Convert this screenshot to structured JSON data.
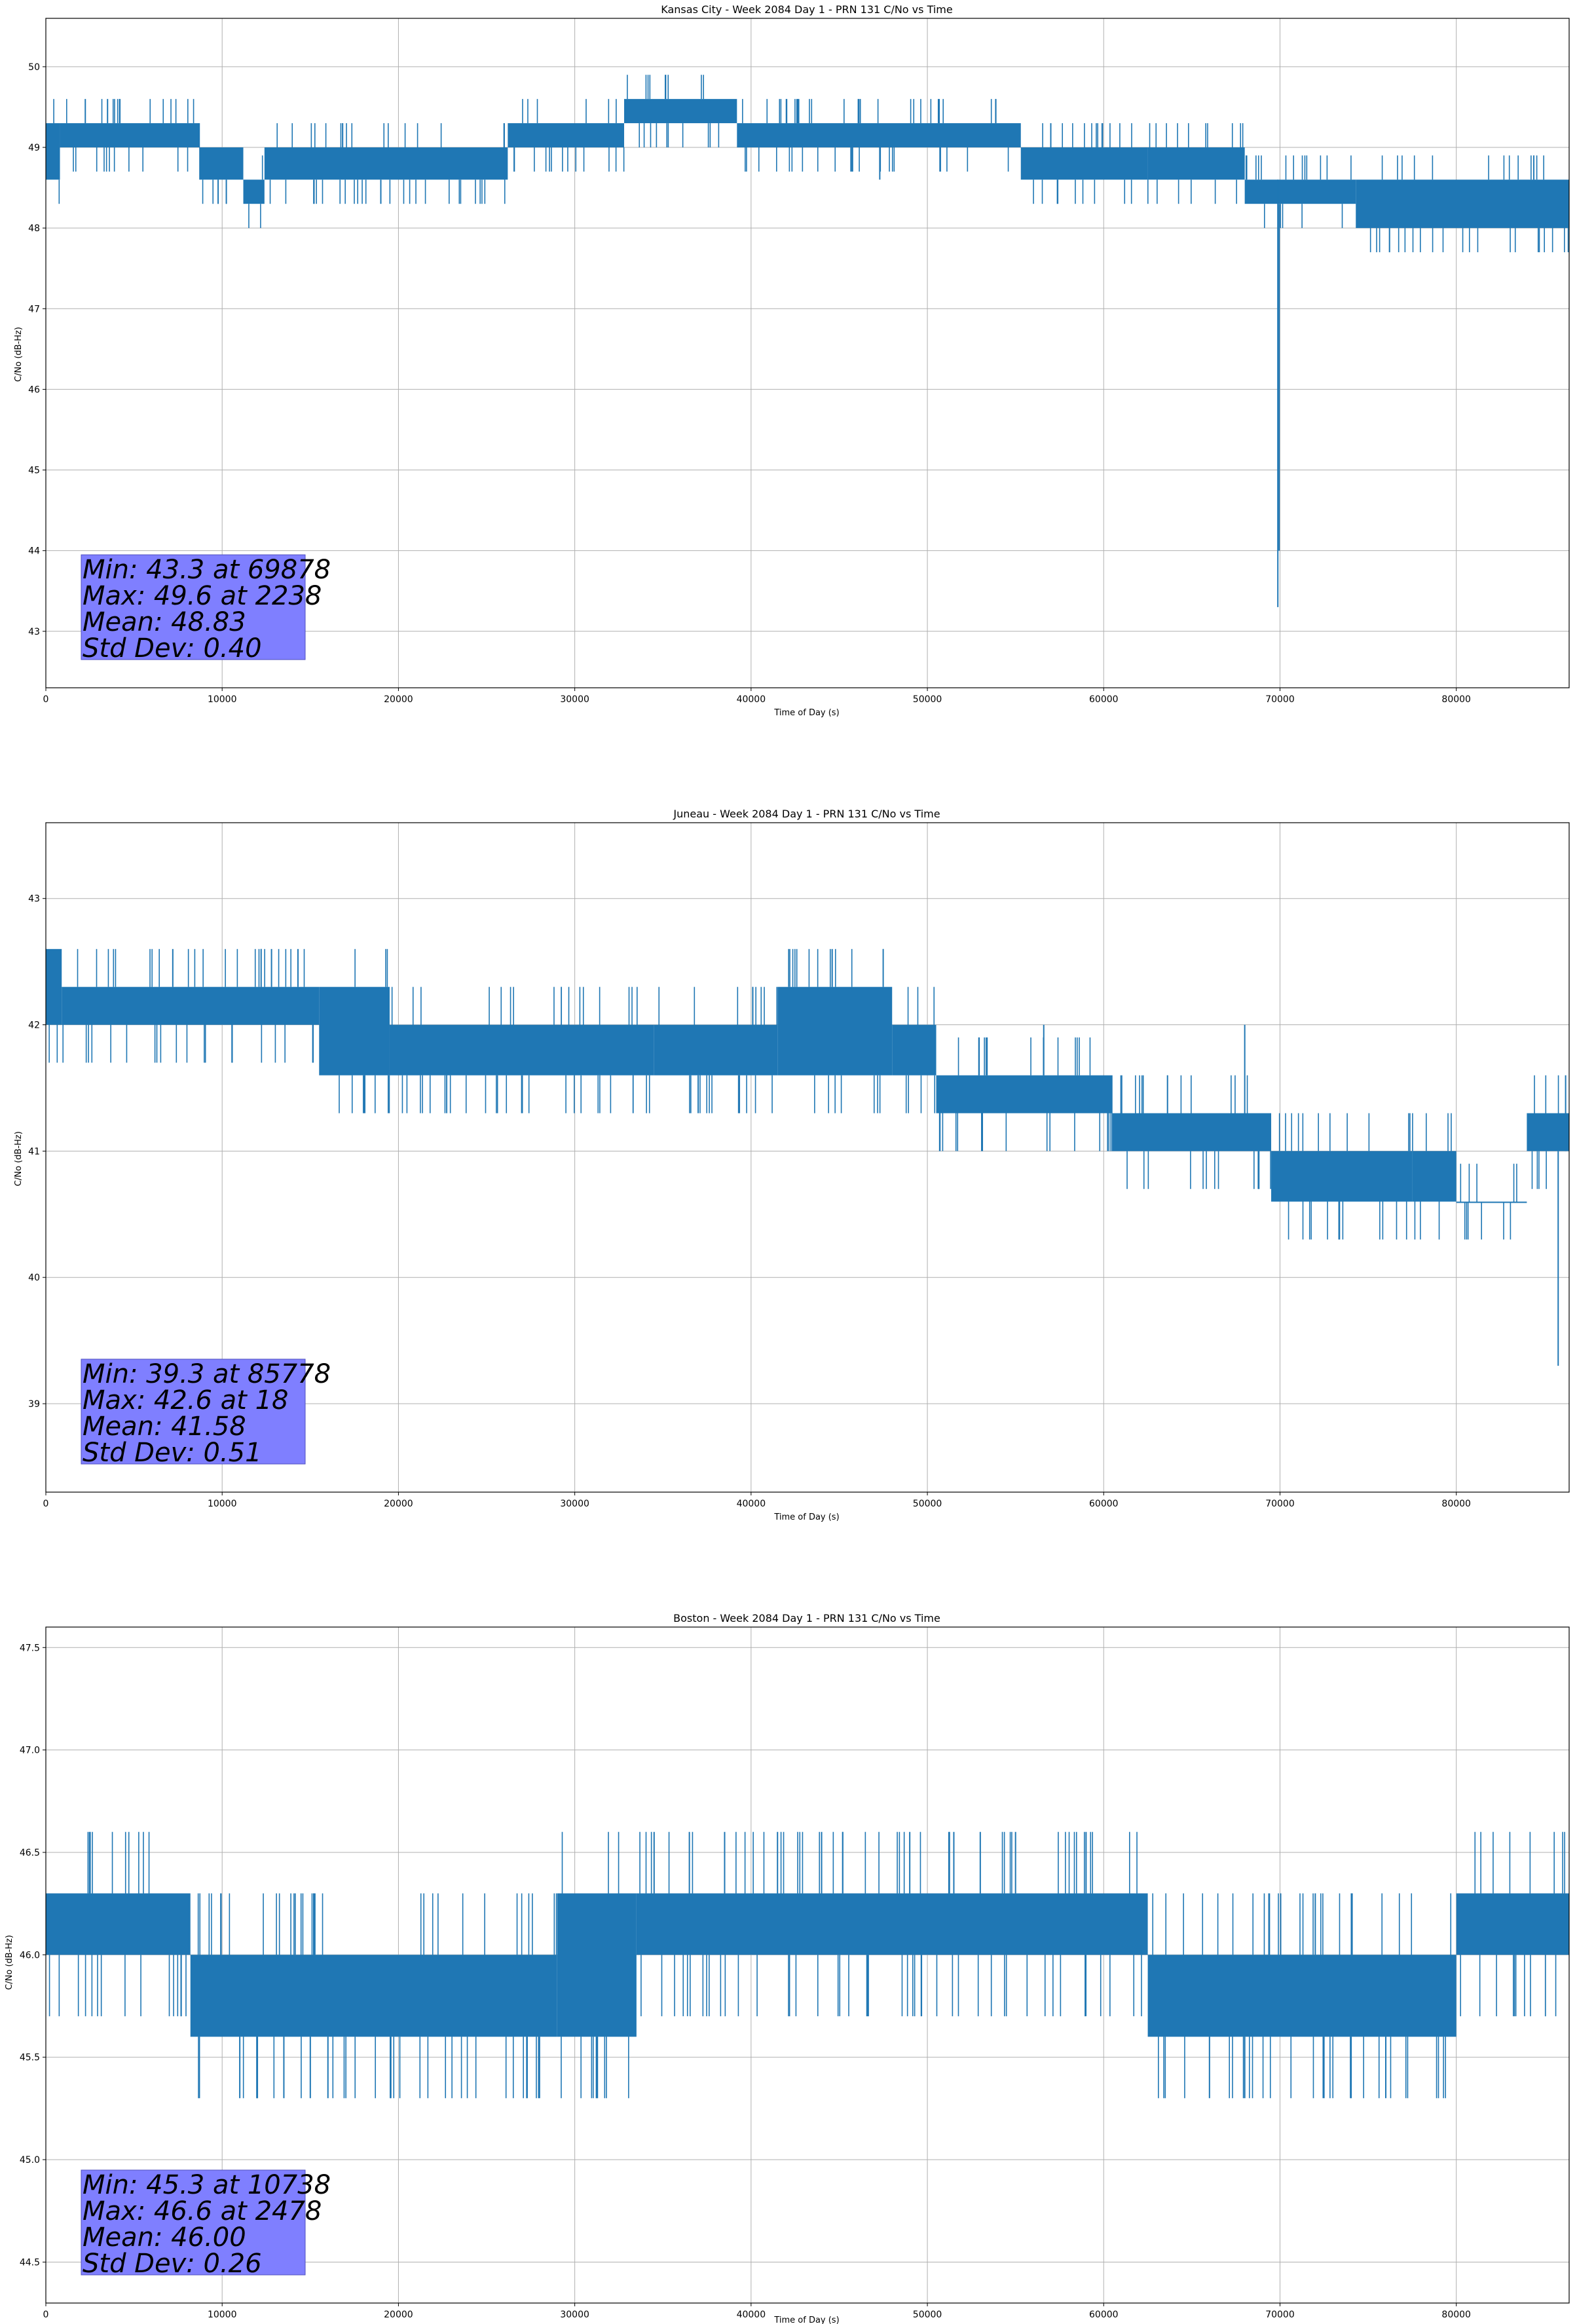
{
  "colors": {
    "series": "#1f77b4",
    "grid": "#b0b0b0",
    "stats_box_fill": "#7f7fff",
    "axes": "#000000"
  },
  "chart_data": [
    {
      "type": "line",
      "title": "Kansas City - Week 2084 Day 1 - PRN 131 C/No vs Time",
      "xlabel": "Time of Day (s)",
      "ylabel": "C/No (dB-Hz)",
      "xlim": [
        0,
        86400
      ],
      "ylim": [
        42.3,
        50.6
      ],
      "xticks": [
        0,
        10000,
        20000,
        30000,
        40000,
        50000,
        60000,
        70000,
        80000
      ],
      "yticks": [
        43,
        44,
        45,
        46,
        47,
        48,
        49,
        50
      ],
      "yticklabels": [
        "43",
        "44",
        "45",
        "46",
        "47",
        "48",
        "49",
        "50"
      ],
      "grid": true,
      "legend": "none",
      "stats": [
        "Min: 43.3 at 69878",
        "Max: 49.6 at 2238",
        "Mean: 48.83",
        "Std Dev: 0.40"
      ],
      "series_bands": [
        {
          "x": [
            0,
            800
          ],
          "lo": 48.6,
          "hi": 49.3
        },
        {
          "x": [
            800,
            8700
          ],
          "lo": 49.0,
          "hi": 49.3
        },
        {
          "x": [
            8700,
            11200
          ],
          "lo": 48.6,
          "hi": 49.0
        },
        {
          "x": [
            11200,
            12400
          ],
          "lo": 48.3,
          "hi": 48.6
        },
        {
          "x": [
            12400,
            26200
          ],
          "lo": 48.6,
          "hi": 49.0
        },
        {
          "x": [
            26200,
            32800
          ],
          "lo": 49.0,
          "hi": 49.3
        },
        {
          "x": [
            32800,
            39200
          ],
          "lo": 49.3,
          "hi": 49.6
        },
        {
          "x": [
            39200,
            55300
          ],
          "lo": 49.0,
          "hi": 49.3
        },
        {
          "x": [
            55300,
            62500
          ],
          "lo": 48.6,
          "hi": 49.0
        },
        {
          "x": [
            62500,
            68000
          ],
          "lo": 48.6,
          "hi": 49.0
        },
        {
          "x": [
            68000,
            74300
          ],
          "lo": 48.3,
          "hi": 48.6
        },
        {
          "x": [
            74300,
            86400
          ],
          "lo": 48.0,
          "hi": 48.6
        }
      ],
      "spikes": [
        {
          "x": 2238,
          "lo": 49.3,
          "hi": 49.6
        },
        {
          "x": 3500,
          "lo": 49.3,
          "hi": 49.6
        },
        {
          "x": 4200,
          "lo": 49.3,
          "hi": 49.6
        },
        {
          "x": 19000,
          "lo": 48.3,
          "hi": 48.6
        },
        {
          "x": 26000,
          "lo": 48.6,
          "hi": 49.3
        },
        {
          "x": 42600,
          "lo": 49.3,
          "hi": 49.6
        },
        {
          "x": 47300,
          "lo": 48.6,
          "hi": 49.0
        },
        {
          "x": 57000,
          "lo": 49.0,
          "hi": 49.3
        },
        {
          "x": 69878,
          "lo": 43.3,
          "hi": 48.6
        },
        {
          "x": 69950,
          "lo": 44.0,
          "hi": 48.3
        }
      ]
    },
    {
      "type": "line",
      "title": "Juneau - Week 2084 Day 1 - PRN 131 C/No vs Time",
      "xlabel": "Time of Day (s)",
      "ylabel": "C/No (dB-Hz)",
      "xlim": [
        0,
        86400
      ],
      "ylim": [
        38.3,
        43.6
      ],
      "xticks": [
        0,
        10000,
        20000,
        30000,
        40000,
        50000,
        60000,
        70000,
        80000
      ],
      "yticks": [
        39,
        40,
        41,
        42,
        43
      ],
      "yticklabels": [
        "39",
        "40",
        "41",
        "42",
        "43"
      ],
      "grid": true,
      "legend": "none",
      "stats": [
        "Min: 39.3 at 85778",
        "Max: 42.6 at 18",
        "Mean: 41.58",
        "Std Dev: 0.51"
      ],
      "series_bands": [
        {
          "x": [
            0,
            900
          ],
          "lo": 42.0,
          "hi": 42.6
        },
        {
          "x": [
            900,
            15500
          ],
          "lo": 42.0,
          "hi": 42.3
        },
        {
          "x": [
            15500,
            19500
          ],
          "lo": 41.6,
          "hi": 42.3
        },
        {
          "x": [
            19500,
            34500
          ],
          "lo": 41.6,
          "hi": 42.0
        },
        {
          "x": [
            34500,
            41500
          ],
          "lo": 41.6,
          "hi": 42.0
        },
        {
          "x": [
            41500,
            48000
          ],
          "lo": 41.6,
          "hi": 42.3
        },
        {
          "x": [
            48000,
            50500
          ],
          "lo": 41.6,
          "hi": 42.0
        },
        {
          "x": [
            50500,
            60500
          ],
          "lo": 41.3,
          "hi": 41.6
        },
        {
          "x": [
            60500,
            69500
          ],
          "lo": 41.0,
          "hi": 41.3
        },
        {
          "x": [
            69500,
            77500
          ],
          "lo": 40.6,
          "hi": 41.0
        },
        {
          "x": [
            77500,
            80000
          ],
          "lo": 40.6,
          "hi": 41.0
        },
        {
          "x": [
            80000,
            84000
          ],
          "lo": 40.6,
          "hi": 40.6
        },
        {
          "x": [
            84000,
            86400
          ],
          "lo": 41.0,
          "hi": 41.3
        }
      ],
      "spikes": [
        {
          "x": 18,
          "lo": 42.0,
          "hi": 42.6
        },
        {
          "x": 7200,
          "lo": 42.3,
          "hi": 42.6
        },
        {
          "x": 12800,
          "lo": 42.3,
          "hi": 42.6
        },
        {
          "x": 14300,
          "lo": 42.3,
          "hi": 42.6
        },
        {
          "x": 37000,
          "lo": 41.3,
          "hi": 41.6
        },
        {
          "x": 44600,
          "lo": 42.3,
          "hi": 42.6
        },
        {
          "x": 56600,
          "lo": 41.6,
          "hi": 42.0
        },
        {
          "x": 68000,
          "lo": 41.3,
          "hi": 42.0
        },
        {
          "x": 85778,
          "lo": 39.3,
          "hi": 41.0
        },
        {
          "x": 86200,
          "lo": 41.0,
          "hi": 41.6
        }
      ]
    },
    {
      "type": "line",
      "title": "Boston - Week 2084 Day 1 - PRN 131 C/No vs Time",
      "xlabel": "Time of Day (s)",
      "ylabel": "C/No (dB-Hz)",
      "xlim": [
        0,
        86400
      ],
      "ylim": [
        44.3,
        47.6
      ],
      "xticks": [
        0,
        10000,
        20000,
        30000,
        40000,
        50000,
        60000,
        70000,
        80000
      ],
      "yticks": [
        44.5,
        45.0,
        45.5,
        46.0,
        46.5,
        47.0,
        47.5
      ],
      "yticklabels": [
        "44.5",
        "45.0",
        "45.5",
        "46.0",
        "46.5",
        "47.0",
        "47.5"
      ],
      "grid": true,
      "legend": "none",
      "stats": [
        "Min: 45.3 at 10738",
        "Max: 46.6 at 2478",
        "Mean: 46.00",
        "Std Dev: 0.26"
      ],
      "series_bands": [
        {
          "x": [
            0,
            8200
          ],
          "lo": 46.0,
          "hi": 46.3
        },
        {
          "x": [
            8200,
            29000
          ],
          "lo": 45.6,
          "hi": 46.0
        },
        {
          "x": [
            29000,
            33500
          ],
          "lo": 45.6,
          "hi": 46.3
        },
        {
          "x": [
            33500,
            62500
          ],
          "lo": 46.0,
          "hi": 46.3
        },
        {
          "x": [
            62500,
            80000
          ],
          "lo": 45.6,
          "hi": 46.0
        },
        {
          "x": [
            80000,
            86400
          ],
          "lo": 46.0,
          "hi": 46.3
        }
      ],
      "spikes": [
        {
          "x": 2478,
          "lo": 46.3,
          "hi": 46.6
        },
        {
          "x": 11000,
          "lo": 45.3,
          "hi": 45.6
        },
        {
          "x": 12000,
          "lo": 45.3,
          "hi": 45.6
        },
        {
          "x": 13500,
          "lo": 45.3,
          "hi": 45.6
        },
        {
          "x": 15000,
          "lo": 45.3,
          "hi": 45.6
        },
        {
          "x": 16000,
          "lo": 45.3,
          "hi": 45.6
        },
        {
          "x": 28000,
          "lo": 45.3,
          "hi": 45.6
        },
        {
          "x": 34500,
          "lo": 46.3,
          "hi": 46.6
        },
        {
          "x": 36500,
          "lo": 46.3,
          "hi": 46.6
        },
        {
          "x": 38500,
          "lo": 46.3,
          "hi": 46.6
        },
        {
          "x": 41500,
          "lo": 46.3,
          "hi": 46.6
        },
        {
          "x": 44000,
          "lo": 46.3,
          "hi": 46.6
        },
        {
          "x": 49000,
          "lo": 46.3,
          "hi": 46.6
        },
        {
          "x": 51500,
          "lo": 46.3,
          "hi": 46.6
        },
        {
          "x": 53000,
          "lo": 46.3,
          "hi": 46.6
        },
        {
          "x": 55000,
          "lo": 46.3,
          "hi": 46.6
        },
        {
          "x": 59000,
          "lo": 46.3,
          "hi": 46.6
        },
        {
          "x": 66000,
          "lo": 45.3,
          "hi": 45.6
        },
        {
          "x": 68000,
          "lo": 45.3,
          "hi": 45.6
        },
        {
          "x": 72000,
          "lo": 46.0,
          "hi": 46.3
        },
        {
          "x": 74000,
          "lo": 45.3,
          "hi": 45.6
        },
        {
          "x": 76000,
          "lo": 45.3,
          "hi": 45.6
        }
      ]
    }
  ]
}
